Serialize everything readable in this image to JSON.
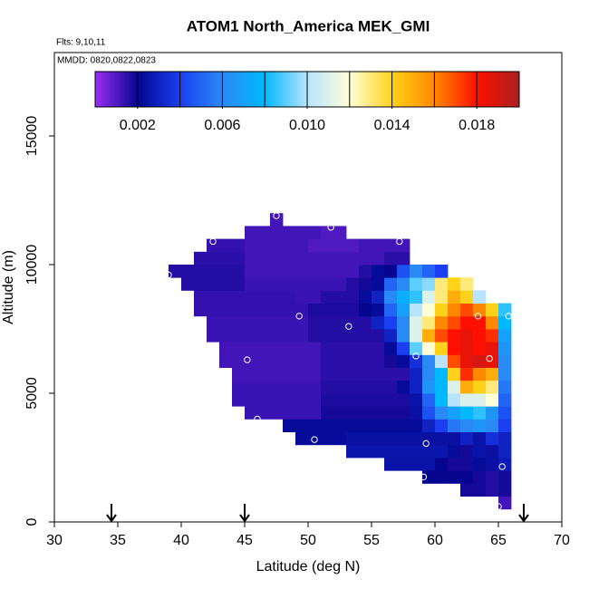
{
  "chart_data": {
    "type": "heatmap",
    "title": "ATOM1 North_America MEK_GMI",
    "subtitle": "Flts: 9,10,11",
    "annotation": "MMDD: 0820,0822,0823",
    "x_label": "Latitude (deg N)",
    "y_label": "Altitude (m)",
    "xlim": [
      30,
      70
    ],
    "ylim": [
      0,
      18240
    ],
    "xticks": [
      30,
      35,
      40,
      45,
      50,
      55,
      60,
      65,
      70
    ],
    "yticks": [
      0,
      5000,
      10000,
      15000
    ],
    "x_edges": [
      38,
      39,
      40,
      41,
      42,
      43,
      44,
      45,
      46,
      47,
      48,
      49,
      50,
      51,
      52,
      53,
      54,
      55,
      56,
      57,
      58,
      59,
      60,
      61,
      62,
      63,
      64,
      65,
      66
    ],
    "y_edges": [
      500,
      1000,
      1500,
      2000,
      2500,
      3000,
      3500,
      4000,
      4500,
      5000,
      5500,
      6000,
      6500,
      7000,
      7500,
      8000,
      8500,
      9000,
      9500,
      10000,
      10500,
      11000,
      11500,
      12000
    ],
    "z": [
      [
        null,
        null,
        null,
        null,
        null,
        null,
        null,
        null,
        null,
        null,
        null,
        null,
        null,
        null,
        null,
        null,
        null,
        null,
        null,
        null,
        null,
        null,
        null,
        null,
        null,
        null,
        null,
        0.0012
      ],
      [
        null,
        null,
        null,
        null,
        null,
        null,
        null,
        null,
        null,
        null,
        null,
        null,
        null,
        null,
        null,
        null,
        null,
        null,
        null,
        null,
        null,
        null,
        null,
        null,
        0.0018,
        0.0018,
        0.0016,
        0.0018
      ],
      [
        null,
        null,
        null,
        null,
        null,
        null,
        null,
        null,
        null,
        null,
        null,
        null,
        null,
        null,
        null,
        null,
        null,
        null,
        null,
        null,
        null,
        0.002,
        0.002,
        0.002,
        0.002,
        0.0018,
        0.0016,
        0.0018
      ],
      [
        null,
        null,
        null,
        null,
        null,
        null,
        null,
        null,
        null,
        null,
        null,
        null,
        null,
        null,
        null,
        null,
        null,
        null,
        0.0025,
        0.0025,
        0.0025,
        0.0025,
        0.002,
        0.0018,
        0.0018,
        0.0022,
        0.0024,
        0.0028
      ],
      [
        null,
        null,
        null,
        null,
        null,
        null,
        null,
        null,
        null,
        null,
        null,
        null,
        null,
        null,
        null,
        0.0026,
        0.0026,
        0.0026,
        0.0026,
        0.0026,
        0.0026,
        0.0026,
        0.0026,
        0.0022,
        0.0018,
        0.0025,
        0.0024,
        0.003
      ],
      [
        null,
        null,
        null,
        null,
        null,
        null,
        null,
        null,
        null,
        null,
        null,
        0.0022,
        0.0022,
        0.0022,
        0.0022,
        0.0024,
        0.0024,
        0.0024,
        0.0024,
        0.0024,
        0.0024,
        0.0024,
        0.0024,
        0.0024,
        0.003,
        0.0025,
        0.0035,
        0.003
      ],
      [
        null,
        null,
        null,
        null,
        null,
        null,
        null,
        null,
        null,
        null,
        0.0022,
        0.0022,
        0.0022,
        0.0022,
        0.0022,
        0.0022,
        0.0022,
        0.0022,
        0.0022,
        0.0022,
        0.0022,
        0.003,
        0.004,
        0.0055,
        0.006,
        0.0065,
        0.006,
        0.004
      ],
      [
        null,
        null,
        null,
        null,
        null,
        null,
        null,
        0.0013,
        0.0013,
        0.0013,
        0.0013,
        0.0013,
        0.0013,
        0.0018,
        0.0018,
        0.0018,
        0.0018,
        0.0018,
        0.0018,
        0.0018,
        0.0024,
        0.0045,
        0.006,
        0.007,
        0.008,
        0.0085,
        0.0065,
        0.0045
      ],
      [
        null,
        null,
        null,
        null,
        null,
        null,
        0.0013,
        0.0013,
        0.0013,
        0.0013,
        0.0013,
        0.0013,
        0.0013,
        0.0017,
        0.0017,
        0.0017,
        0.0017,
        0.0017,
        0.0017,
        0.0017,
        0.0025,
        0.005,
        0.008,
        0.01,
        0.011,
        0.011,
        0.012,
        0.005
      ],
      [
        null,
        null,
        null,
        null,
        null,
        null,
        0.0013,
        0.0013,
        0.0013,
        0.0013,
        0.0013,
        0.0013,
        0.0013,
        0.0016,
        0.0016,
        0.0016,
        0.0016,
        0.0016,
        0.0016,
        0.0022,
        0.003,
        0.0065,
        0.008,
        0.011,
        0.015,
        0.014,
        0.013,
        0.0055
      ],
      [
        null,
        null,
        null,
        null,
        null,
        null,
        0.0012,
        0.0012,
        0.0012,
        0.0012,
        0.0012,
        0.0012,
        0.0012,
        0.0015,
        0.0015,
        0.0015,
        0.0015,
        0.0015,
        0.0015,
        0.0015,
        0.003,
        0.006,
        0.008,
        0.014,
        0.0175,
        0.016,
        0.015,
        0.006
      ],
      [
        null,
        null,
        null,
        null,
        null,
        0.0012,
        0.0012,
        0.0012,
        0.0012,
        0.0012,
        0.0012,
        0.0012,
        0.0012,
        0.0015,
        0.0015,
        0.0015,
        0.0015,
        0.0015,
        0.0018,
        0.0022,
        0.0035,
        0.006,
        0.01,
        0.017,
        0.0185,
        0.019,
        0.0185,
        0.006
      ],
      [
        null,
        null,
        null,
        null,
        null,
        0.0012,
        0.0012,
        0.0012,
        0.0012,
        0.0012,
        0.0012,
        0.0012,
        0.0012,
        0.0015,
        0.0015,
        0.0015,
        0.0015,
        0.0015,
        0.0022,
        0.004,
        0.009,
        0.012,
        0.014,
        0.018,
        0.0185,
        0.018,
        0.0185,
        0.0065
      ],
      [
        null,
        null,
        null,
        null,
        0.0013,
        0.0013,
        0.0013,
        0.0013,
        0.0013,
        0.0013,
        0.0013,
        0.0013,
        0.0016,
        0.0016,
        0.0016,
        0.0016,
        0.0016,
        0.0016,
        0.003,
        0.006,
        0.011,
        0.015,
        0.017,
        0.018,
        0.0185,
        0.018,
        0.0175,
        0.007
      ],
      [
        null,
        null,
        null,
        null,
        0.0013,
        0.0013,
        0.0013,
        0.0013,
        0.0013,
        0.0013,
        0.0013,
        0.0013,
        0.0016,
        0.0016,
        0.0016,
        0.0016,
        0.0016,
        0.003,
        0.004,
        0.006,
        0.011,
        0.013,
        0.016,
        0.017,
        0.018,
        0.018,
        0.016,
        0.008
      ],
      [
        null,
        null,
        null,
        0.0014,
        0.0014,
        0.0014,
        0.0014,
        0.0014,
        0.0014,
        0.0014,
        0.0014,
        0.0014,
        0.0017,
        0.0017,
        0.0017,
        0.0017,
        0.002,
        0.0022,
        0.005,
        0.007,
        0.01,
        0.012,
        0.014,
        0.016,
        0.017,
        0.016,
        0.014,
        0.0085
      ],
      [
        null,
        null,
        null,
        0.0014,
        0.0014,
        0.0014,
        0.0014,
        0.0014,
        0.0014,
        0.0014,
        0.0014,
        0.0013,
        0.0013,
        0.0016,
        0.0016,
        0.0016,
        0.0022,
        0.003,
        0.006,
        0.0075,
        0.0085,
        0.011,
        0.013,
        0.015,
        0.014,
        0.01,
        null,
        null
      ],
      [
        null,
        null,
        0.0016,
        0.0016,
        0.0016,
        0.0016,
        0.0016,
        0.0013,
        0.0013,
        0.0013,
        0.0013,
        0.0013,
        0.0013,
        0.0013,
        0.0013,
        0.0016,
        0.0018,
        0.0022,
        0.005,
        0.006,
        0.009,
        0.0095,
        0.013,
        0.014,
        0.013,
        null,
        null,
        null
      ],
      [
        null,
        0.0016,
        0.0016,
        0.0016,
        0.0016,
        0.0016,
        0.0016,
        0.0012,
        0.0012,
        0.0012,
        0.0012,
        0.0012,
        0.0012,
        0.0012,
        0.0012,
        0.0012,
        0.0016,
        0.0022,
        0.002,
        0.0045,
        0.006,
        0.005,
        0.004,
        null,
        null,
        null,
        null,
        null
      ],
      [
        null,
        null,
        null,
        0.0015,
        0.0015,
        0.0015,
        0.0015,
        0.0012,
        0.0012,
        0.0012,
        0.0012,
        0.0012,
        0.0012,
        0.0012,
        0.0012,
        0.0012,
        0.0012,
        0.0012,
        0.0015,
        0.0015,
        null,
        null,
        null,
        null,
        null,
        null,
        null,
        null
      ],
      [
        null,
        null,
        null,
        null,
        0.0014,
        0.0014,
        0.0014,
        0.0012,
        0.0012,
        0.0012,
        0.0012,
        0.0012,
        0.001,
        0.001,
        0.001,
        0.001,
        0.0012,
        0.0012,
        0.0012,
        0.0012,
        null,
        null,
        null,
        null,
        null,
        null,
        null,
        null
      ],
      [
        null,
        null,
        null,
        null,
        null,
        null,
        null,
        0.0012,
        0.0012,
        0.0012,
        0.0012,
        0.0012,
        0.0012,
        0.001,
        0.001,
        null,
        null,
        null,
        null,
        null,
        null,
        null,
        null,
        null,
        null,
        null,
        null,
        null
      ],
      [
        null,
        null,
        null,
        null,
        null,
        null,
        null,
        null,
        null,
        0.0012,
        null,
        null,
        null,
        null,
        null,
        null,
        null,
        null,
        null,
        null,
        null,
        null,
        null,
        null,
        null,
        null,
        null,
        null
      ]
    ],
    "clim": [
      0,
      0.02
    ],
    "colormap": [
      "#9a2ef5",
      "#05058f",
      "#1a3ef0",
      "#2a8af5",
      "#00b8ff",
      "#b8e4ff",
      "#ffffd8",
      "#ffd21a",
      "#ff8800",
      "#ff1000",
      "#a82020"
    ],
    "cbar_breaks": [
      0.002,
      0.004,
      0.006,
      0.008,
      0.01,
      0.012,
      0.014,
      0.016,
      0.018
    ],
    "cticks": [
      0.002,
      0.006,
      {
        "value": 0.01,
        "label": "0.010"
      },
      0.014,
      0.018
    ],
    "points": {
      "x": [
        39,
        42.5,
        47.5,
        51.8,
        57.2,
        49.3,
        53.2,
        63.4,
        65.8,
        45.2,
        58.5,
        64.3,
        46,
        50.5,
        59.3,
        59.1,
        65.3,
        65
      ],
      "y": [
        9600,
        10900,
        11900,
        11450,
        10900,
        8000,
        7600,
        8000,
        8000,
        6300,
        6450,
        6350,
        4000,
        3200,
        3050,
        1750,
        2150,
        600
      ],
      "color": "#ffffff"
    },
    "arrows_x": [
      34.5,
      45,
      67
    ]
  }
}
